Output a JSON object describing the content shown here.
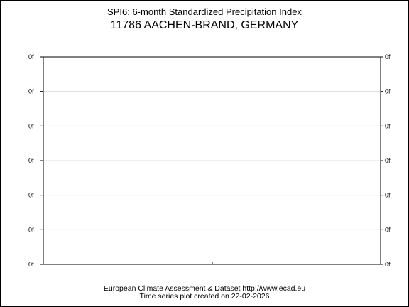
{
  "chart_data": {
    "type": "line",
    "title": "SPI6: 6-month Standardized Precipitation Index",
    "subtitle": "11786 AACHEN-BRAND, GERMANY",
    "y_tick_labels": [
      "0f",
      "0f",
      "0f",
      "0f",
      "0f",
      "0f",
      "0f"
    ],
    "x_tick_labels": [],
    "series": [],
    "grid": true,
    "footer_line1": "European Climate Assessment & Dataset  http://www.ecad.eu",
    "footer_line2": "Time series plot created on 22-02-2026"
  },
  "colors": {
    "axis": "#000000",
    "grid": "#dcdcdc",
    "background": "#ffffff"
  }
}
